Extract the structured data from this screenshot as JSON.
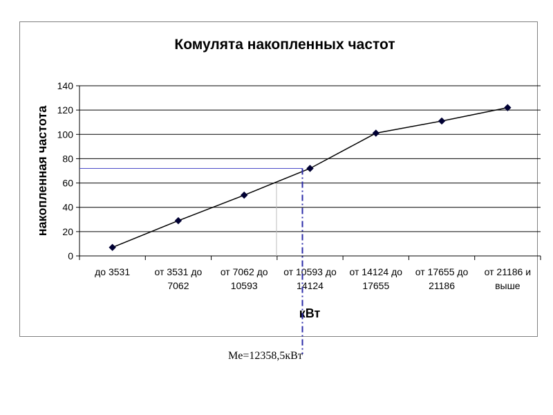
{
  "chart_data": {
    "type": "line",
    "title": "Комулята накопленных частот",
    "xlabel": "кВт",
    "ylabel": "накопленная частота",
    "categories": [
      [
        "до 3531"
      ],
      [
        "от 3531 до",
        "7062"
      ],
      [
        "от 7062 до",
        "10593"
      ],
      [
        "от 10593 до",
        "14124"
      ],
      [
        "от 14124 до",
        "17655"
      ],
      [
        "от 17655 до",
        "21186"
      ],
      [
        "от 21186 и",
        "выше"
      ]
    ],
    "series": [
      {
        "values": [
          7,
          29,
          50,
          72,
          101,
          111,
          122
        ]
      }
    ],
    "ylim": [
      0,
      140
    ],
    "yticks": [
      0,
      20,
      40,
      60,
      80,
      100,
      120,
      140
    ],
    "grid": true,
    "median_reference_y": 72,
    "colors": {
      "line": "#000000",
      "marker": "#000033",
      "grid": "#000000",
      "reference_line": "#4a4ac8",
      "median_line": "#2b2ba8"
    }
  },
  "annotation": {
    "median_label": "Me=12358,5кВт"
  }
}
